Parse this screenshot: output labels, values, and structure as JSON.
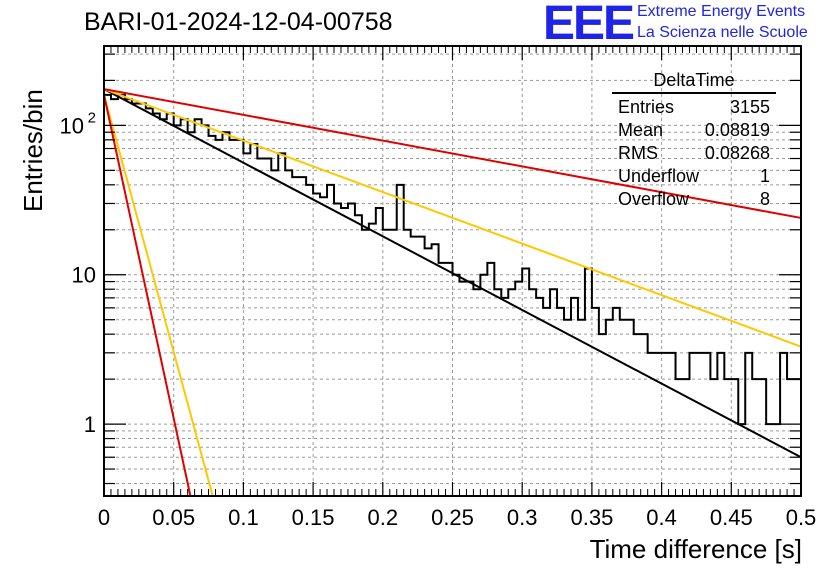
{
  "header": {
    "title": "BARI-01-2024-12-04-00758",
    "logo_text": "EEE",
    "logo_line1": "Extreme Energy Events",
    "logo_line2": "La Scienza nelle Scuole",
    "logo_color": "#1f24e6"
  },
  "stats_box": {
    "name": "DeltaTime",
    "rows": [
      {
        "label": "Entries",
        "value": "3155"
      },
      {
        "label": "Mean",
        "value": "0.08819"
      },
      {
        "label": "RMS",
        "value": "0.08268"
      },
      {
        "label": "Underflow",
        "value": "1"
      },
      {
        "label": "Overflow",
        "value": "8"
      }
    ]
  },
  "chart_data": {
    "type": "histogram",
    "title": "BARI-01-2024-12-04-00758",
    "xlabel": "Time difference [s]",
    "ylabel": "Entries/bin",
    "xlim": [
      0,
      0.5
    ],
    "ylim": [
      0.33,
      340
    ],
    "yscale": "log",
    "grid": true,
    "bin_width": 0.005,
    "x_ticks": [
      "0",
      "0.05",
      "0.1",
      "0.15",
      "0.2",
      "0.25",
      "0.3",
      "0.35",
      "0.4",
      "0.45",
      "0.5"
    ],
    "y_ticks": [
      {
        "value": 1,
        "label": "1"
      },
      {
        "value": 10,
        "label": "10"
      },
      {
        "value": 100,
        "label": "10",
        "exponent": "2"
      }
    ],
    "histogram_counts": [
      160,
      150,
      160,
      150,
      140,
      140,
      130,
      120,
      110,
      120,
      100,
      110,
      90,
      110,
      100,
      85,
      80,
      90,
      80,
      80,
      65,
      75,
      60,
      60,
      50,
      65,
      50,
      45,
      45,
      40,
      35,
      33,
      40,
      30,
      28,
      30,
      25,
      20,
      22,
      28,
      20,
      20,
      40,
      20,
      18,
      18,
      15,
      16,
      12,
      12,
      10,
      9,
      9,
      8,
      10,
      12,
      8,
      7,
      8,
      9,
      11,
      8,
      7,
      6,
      8,
      6,
      5,
      7,
      5,
      11,
      6,
      4,
      5,
      6,
      5,
      5,
      4,
      4,
      3,
      3,
      3,
      3,
      2,
      2,
      3,
      3,
      3,
      2,
      3,
      2,
      2,
      1,
      3,
      2,
      2,
      1,
      1,
      3,
      2,
      2
    ],
    "fit_lines": [
      {
        "color": "#000000",
        "y0": 175,
        "y_end": 0.6
      },
      {
        "color": "#ffc800",
        "y0": 175,
        "y_end": 3.3
      },
      {
        "color": "#e00000",
        "y0": 175,
        "y_end": 24
      },
      {
        "color": "#ffc800",
        "y0": 160,
        "x_end": 0.078,
        "y_at_x_end": 0.33
      },
      {
        "color": "#e00000",
        "y0": 160,
        "x_end": 0.062,
        "y_at_x_end": 0.33
      }
    ]
  }
}
